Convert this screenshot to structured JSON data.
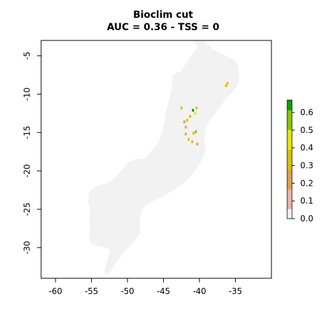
{
  "map": {
    "title_line1": "Bioclim cut",
    "title_line2": "AUC = 0.36 - TSS = 0",
    "x_ticks": [
      "-60",
      "-55",
      "-50",
      "-45",
      "-40",
      "-35"
    ],
    "y_ticks": [
      "-5",
      "-10",
      "-15",
      "-20",
      "-25",
      "-30"
    ],
    "xlim": [
      -62,
      -30
    ],
    "ylim": [
      -34,
      -3
    ],
    "background_color": "#f2f2f2",
    "legend": {
      "ticks": [
        "0.0",
        "0.1",
        "0.2",
        "0.3",
        "0.4",
        "0.5",
        "0.6"
      ],
      "range": [
        0,
        0.67
      ],
      "colors": [
        "#f2f2f2",
        "#e8b5a8",
        "#e0a050",
        "#d9c200",
        "#e6e600",
        "#8bc600",
        "#00a600"
      ]
    },
    "hotspots": [
      {
        "lon": -40.9,
        "lat": -12.1,
        "value": 0.65
      },
      {
        "lon": -40.6,
        "lat": -12.5,
        "value": 0.42
      },
      {
        "lon": -41.3,
        "lat": -12.9,
        "value": 0.35
      },
      {
        "lon": -40.4,
        "lat": -11.8,
        "value": 0.38
      },
      {
        "lon": -42.1,
        "lat": -13.6,
        "value": 0.22
      },
      {
        "lon": -41.7,
        "lat": -13.4,
        "value": 0.3
      },
      {
        "lon": -42.5,
        "lat": -11.8,
        "value": 0.33
      },
      {
        "lon": -40.5,
        "lat": -14.9,
        "value": 0.55
      },
      {
        "lon": -40.8,
        "lat": -15.1,
        "value": 0.36
      },
      {
        "lon": -41.9,
        "lat": -15.2,
        "value": 0.25
      },
      {
        "lon": -41.5,
        "lat": -15.9,
        "value": 0.34
      },
      {
        "lon": -41.0,
        "lat": -16.2,
        "value": 0.32
      },
      {
        "lon": -36.3,
        "lat": -8.9,
        "value": 0.33
      },
      {
        "lon": -36.1,
        "lat": -8.6,
        "value": 0.28
      },
      {
        "lon": -41.9,
        "lat": -14.3,
        "value": 0.2
      },
      {
        "lon": -40.3,
        "lat": -16.5,
        "value": 0.25
      }
    ]
  }
}
